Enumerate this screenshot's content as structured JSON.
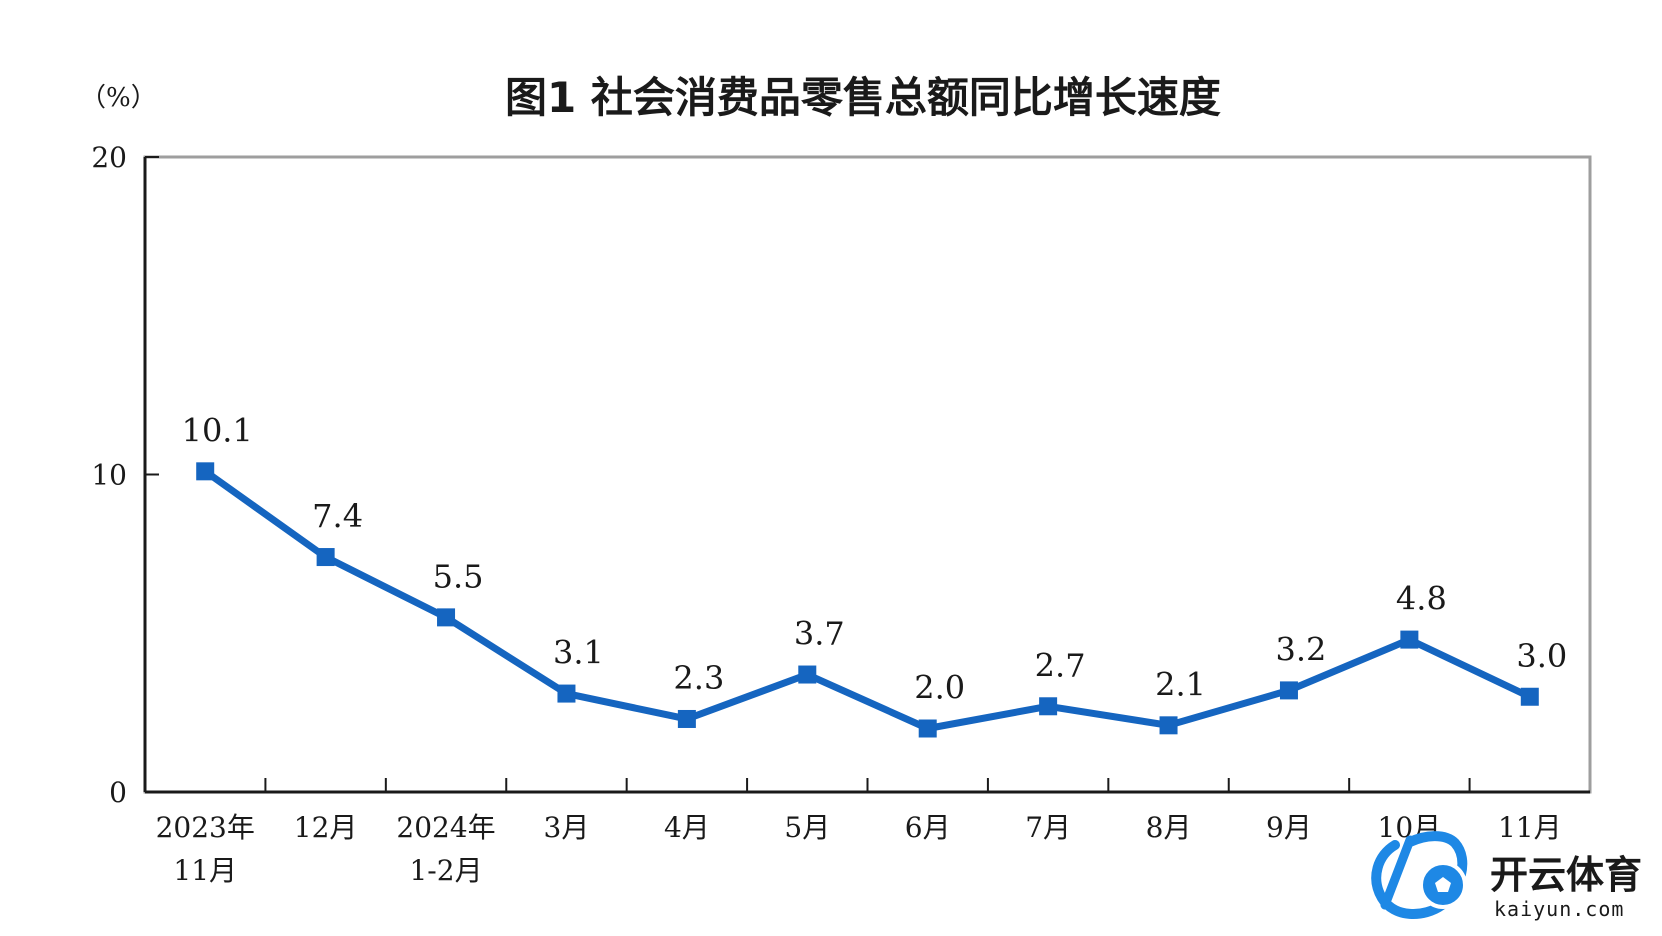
{
  "chart_data": {
    "type": "line",
    "title": "图1  社会消费品零售总额同比增长速度",
    "unit_label": "（%）",
    "ylim": [
      0,
      20
    ],
    "yticks": [
      "0",
      "10",
      "20"
    ],
    "categories": [
      [
        "2023年",
        "11月"
      ],
      [
        "12月"
      ],
      [
        "2024年",
        "1-2月"
      ],
      [
        "3月"
      ],
      [
        "4月"
      ],
      [
        "5月"
      ],
      [
        "6月"
      ],
      [
        "7月"
      ],
      [
        "8月"
      ],
      [
        "9月"
      ],
      [
        "10月"
      ],
      [
        "11月"
      ]
    ],
    "values": [
      10.1,
      7.4,
      5.5,
      3.1,
      2.3,
      3.7,
      2.0,
      2.7,
      2.1,
      3.2,
      4.8,
      3.0
    ],
    "data_labels": [
      "10.1",
      "7.4",
      "5.5",
      "3.1",
      "2.3",
      "3.7",
      "2.0",
      "2.7",
      "2.1",
      "3.2",
      "4.8",
      "3.0"
    ],
    "line_color": "#1565c0",
    "grid": false,
    "legend": "none"
  },
  "watermark": {
    "name": "开云体育",
    "url": "kaiyun.com",
    "colors": [
      "#1e88e5",
      "#ffffff"
    ],
    "icon": "soccer-ball-icon"
  }
}
